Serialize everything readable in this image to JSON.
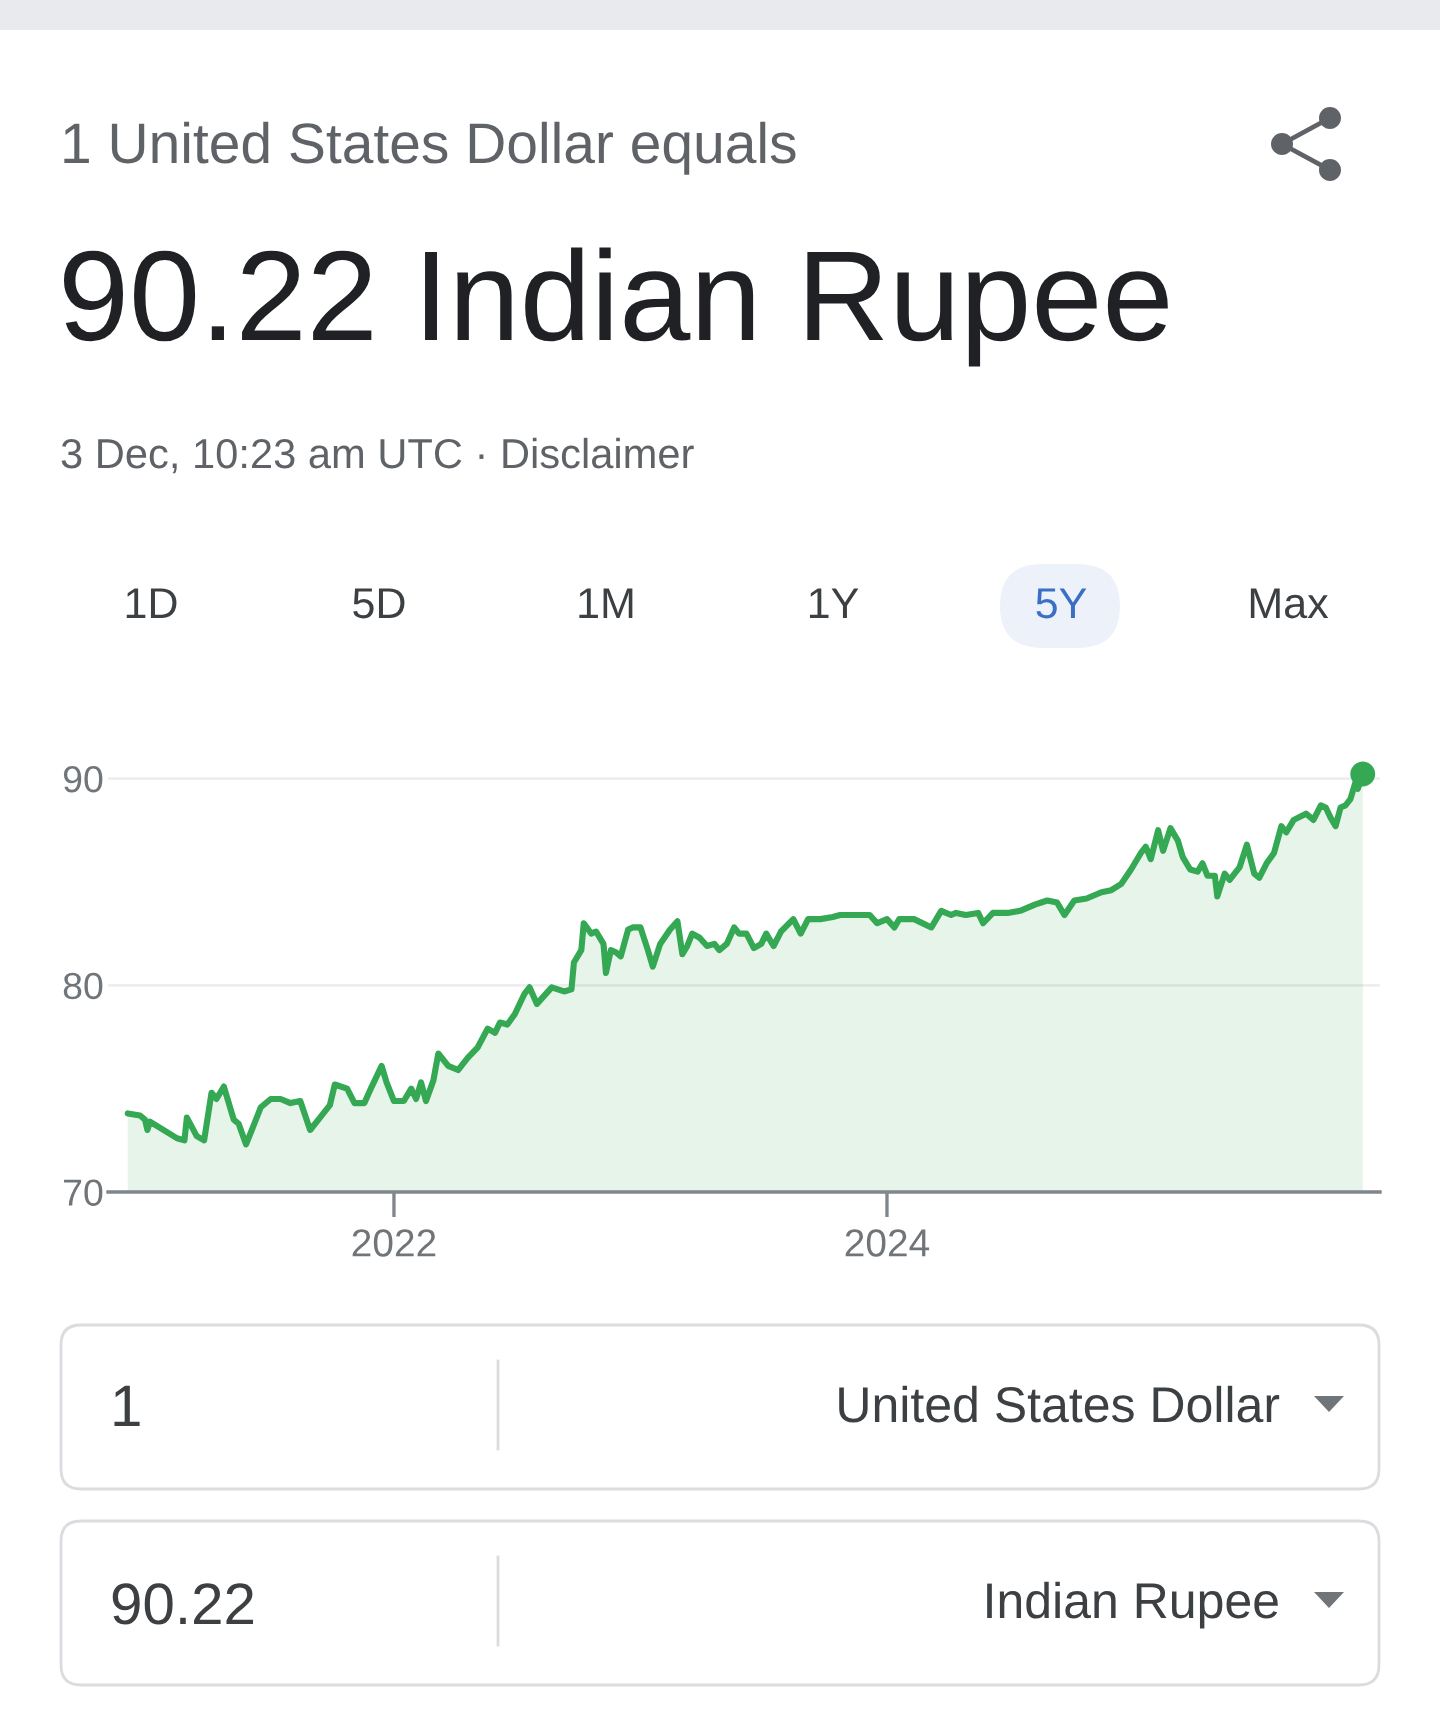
{
  "chart_data": {
    "type": "area",
    "subtitle": "1 United States Dollar equals",
    "title": "90.22 Indian Rupee",
    "annotations": [
      "3 Dec, 10:23 am UTC · Disclaimer",
      "1D",
      "5D",
      "1M",
      "1Y",
      "5Y",
      "Max",
      "1",
      "United States Dollar",
      "90.22",
      "Indian Rupee"
    ],
    "xlim": [
      2020.84,
      2026.0
    ],
    "xticks": [
      2022,
      2024
    ],
    "ylim": [
      70,
      90.22
    ],
    "yticks": [
      70,
      80,
      90
    ],
    "grid": "y",
    "series": [
      {
        "color": "#34a853",
        "x": [
          2020.92,
          2020.97,
          2020.99,
          2021.0,
          2021.01,
          2021.12,
          2021.15,
          2021.16,
          2021.2,
          2021.23,
          2021.26,
          2021.28,
          2021.31,
          2021.35,
          2021.37,
          2021.4,
          2021.43,
          2021.46,
          2021.5,
          2021.54,
          2021.58,
          2021.62,
          2021.66,
          2021.7,
          2021.74,
          2021.76,
          2021.81,
          2021.84,
          2021.88,
          2021.91,
          2021.95,
          2021.97,
          2022.0,
          2022.04,
          2022.07,
          2022.09,
          2022.11,
          2022.13,
          2022.16,
          2022.18,
          2022.22,
          2022.26,
          2022.3,
          2022.34,
          2022.38,
          2022.41,
          2022.43,
          2022.46,
          2022.49,
          2022.53,
          2022.55,
          2022.58,
          2022.64,
          2022.69,
          2022.72,
          2022.73,
          2022.76,
          2022.77,
          2022.8,
          2022.82,
          2022.85,
          2022.86,
          2022.88,
          2022.9,
          2022.92,
          2022.95,
          2022.97,
          2023.0,
          2023.03,
          2023.05,
          2023.08,
          2023.12,
          2023.15,
          2023.17,
          2023.19,
          2023.21,
          2023.24,
          2023.27,
          2023.3,
          2023.32,
          2023.35,
          2023.38,
          2023.4,
          2023.43,
          2023.46,
          2023.49,
          2023.51,
          2023.54,
          2023.57,
          2023.62,
          2023.65,
          2023.68,
          2023.73,
          2023.78,
          2023.81,
          2023.89,
          2023.93,
          2023.96,
          2024.0,
          2024.03,
          2024.05,
          2024.11,
          2024.18,
          2024.22,
          2024.26,
          2024.28,
          2024.32,
          2024.37,
          2024.39,
          2024.43,
          2024.49,
          2024.54,
          2024.6,
          2024.65,
          2024.69,
          2024.72,
          2024.76,
          2024.81,
          2024.87,
          2024.91,
          2024.95,
          2024.99,
          2025.03,
          2025.05,
          2025.07,
          2025.1,
          2025.12,
          2025.15,
          2025.18,
          2025.2,
          2025.23,
          2025.26,
          2025.28,
          2025.3,
          2025.33,
          2025.34,
          2025.37,
          2025.39,
          2025.43,
          2025.46,
          2025.49,
          2025.51,
          2025.54,
          2025.57,
          2025.6,
          2025.62,
          2025.65,
          2025.7,
          2025.73,
          2025.76,
          2025.78,
          2025.8,
          2025.82,
          2025.84,
          2025.86,
          2025.88,
          2025.9,
          2025.91,
          2025.93
        ],
        "values": [
          73.8,
          73.7,
          73.5,
          73.0,
          73.4,
          72.6,
          72.5,
          73.6,
          72.7,
          72.5,
          74.8,
          74.5,
          75.1,
          73.5,
          73.3,
          72.3,
          73.2,
          74.1,
          74.5,
          74.5,
          74.3,
          74.4,
          73.0,
          73.6,
          74.2,
          75.2,
          75.0,
          74.3,
          74.3,
          75.1,
          76.1,
          75.3,
          74.4,
          74.4,
          75.0,
          74.5,
          75.3,
          74.4,
          75.4,
          76.7,
          76.1,
          75.9,
          76.5,
          77.0,
          77.9,
          77.7,
          78.2,
          78.1,
          78.6,
          79.6,
          79.9,
          79.1,
          79.9,
          79.7,
          79.8,
          81.1,
          81.7,
          83.0,
          82.5,
          82.6,
          82.0,
          80.6,
          81.7,
          81.6,
          81.4,
          82.7,
          82.8,
          82.8,
          81.7,
          80.9,
          82.0,
          82.7,
          83.1,
          81.5,
          81.9,
          82.5,
          82.3,
          81.9,
          82.0,
          81.7,
          82.0,
          82.8,
          82.5,
          82.5,
          81.8,
          82.0,
          82.5,
          81.9,
          82.6,
          83.2,
          82.5,
          83.2,
          83.2,
          83.3,
          83.4,
          83.4,
          83.4,
          83.0,
          83.2,
          82.8,
          83.2,
          83.2,
          82.8,
          83.6,
          83.4,
          83.5,
          83.4,
          83.5,
          83.0,
          83.5,
          83.5,
          83.6,
          83.9,
          84.1,
          84.0,
          83.4,
          84.1,
          84.2,
          84.5,
          84.6,
          84.9,
          85.6,
          86.4,
          86.7,
          86.1,
          87.5,
          86.5,
          87.6,
          87.0,
          86.2,
          85.6,
          85.5,
          85.9,
          85.3,
          85.3,
          84.3,
          85.4,
          85.1,
          85.7,
          86.8,
          85.4,
          85.2,
          85.9,
          86.4,
          87.7,
          87.4,
          88.0,
          88.3,
          88.0,
          88.7,
          88.6,
          88.1,
          87.7,
          88.6,
          88.7,
          89.0,
          89.8,
          89.5,
          90.22
        ]
      },
      {
        "type": "scatter",
        "color": "#34a853",
        "x": [
          2025.93
        ],
        "values": [
          90.22
        ]
      }
    ]
  }
}
